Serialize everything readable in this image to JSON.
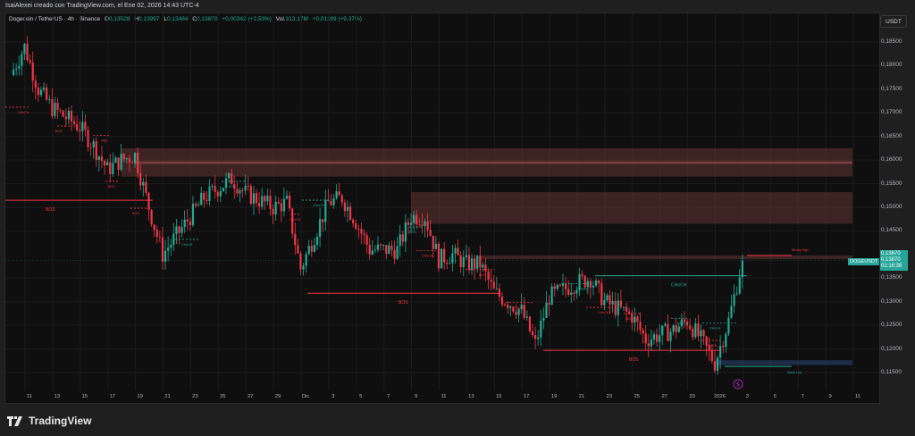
{
  "header": {
    "author_line": "IsaiAlexei creado con TradingView.com, el Ene 02, 2026 14:43 UTC-4"
  },
  "legend": {
    "symbol": "Dogecoin / TetherUS · 4h · Binance",
    "open_label": "O",
    "open": "0,13528",
    "high_label": "H",
    "high": "0,13997",
    "low_label": "L",
    "low": "0,13484",
    "close_label": "C",
    "close": "0,13870",
    "change": "+0,00342 (+2,53%)",
    "vol_label": "Vol.",
    "vol": "313,17M",
    "vol_change": "+0,01189 (+9,37%)"
  },
  "axis": {
    "currency_button": "USDT",
    "price_ticks": [
      "0,18500",
      "0,18000",
      "0,17500",
      "0,17000",
      "0,16500",
      "0,16000",
      "0,15500",
      "0,15000",
      "0,14500",
      "0,13500",
      "0,13000",
      "0,12500",
      "0,12000",
      "0,11500"
    ],
    "time_ticks": [
      "11",
      "13",
      "15",
      "17",
      "19",
      "21",
      "23",
      "25",
      "27",
      "29",
      "Dic",
      "3",
      "5",
      "7",
      "9",
      "11",
      "13",
      "15",
      "17",
      "19",
      "21",
      "23",
      "25",
      "27",
      "29",
      "2026",
      "3",
      "5",
      "7",
      "9",
      "11"
    ]
  },
  "price_label": {
    "symbol": "DOGEUSDT",
    "last": "0,13870",
    "close": "0,13870",
    "countdown": "01:16:38"
  },
  "annotations": {
    "choch": "CHoCH",
    "bos": "BOS",
    "high": "High",
    "strong_high": "Strong High",
    "weak_low": "Weak Low"
  },
  "brand": {
    "name": "TradingView"
  },
  "colors": {
    "up": "#22ab94",
    "down": "#f23645",
    "zone_supply": "#5c2f2f",
    "zone_demand": "#1c2b45",
    "background": "#0f0f0f"
  },
  "chart_data": {
    "type": "candlestick",
    "title": "Dogecoin / TetherUS · 4h · Binance",
    "xlabel": "",
    "ylabel": "USDT",
    "ylim": [
      0.1135,
      0.1875
    ],
    "grid": true,
    "x_ticks": [
      "11",
      "13",
      "15",
      "17",
      "19",
      "21",
      "23",
      "25",
      "27",
      "29",
      "Dic",
      "3",
      "5",
      "7",
      "9",
      "11",
      "13",
      "15",
      "17",
      "19",
      "21",
      "23",
      "25",
      "27",
      "29",
      "2026",
      "3",
      "5",
      "7",
      "9",
      "11"
    ],
    "approx_close_path": [
      {
        "date": "Nov 10",
        "price": 0.178
      },
      {
        "date": "Nov 11",
        "price": 0.184
      },
      {
        "date": "Nov 12",
        "price": 0.175
      },
      {
        "date": "Nov 13",
        "price": 0.171
      },
      {
        "date": "Nov 15",
        "price": 0.167
      },
      {
        "date": "Nov 16",
        "price": 0.163
      },
      {
        "date": "Nov 17",
        "price": 0.158
      },
      {
        "date": "Nov 18",
        "price": 0.16
      },
      {
        "date": "Nov 19",
        "price": 0.161
      },
      {
        "date": "Nov 20",
        "price": 0.15
      },
      {
        "date": "Nov 21",
        "price": 0.14
      },
      {
        "date": "Nov 22",
        "price": 0.144
      },
      {
        "date": "Nov 24",
        "price": 0.152
      },
      {
        "date": "Nov 26",
        "price": 0.156
      },
      {
        "date": "Nov 27",
        "price": 0.153
      },
      {
        "date": "Nov 29",
        "price": 0.15
      },
      {
        "date": "Nov 30",
        "price": 0.151
      },
      {
        "date": "Dic 1",
        "price": 0.137
      },
      {
        "date": "Dic 2",
        "price": 0.144
      },
      {
        "date": "Dic 3",
        "price": 0.151
      },
      {
        "date": "Dic 4",
        "price": 0.152
      },
      {
        "date": "Dic 5",
        "price": 0.147
      },
      {
        "date": "Dic 6",
        "price": 0.141
      },
      {
        "date": "Dic 8",
        "price": 0.141
      },
      {
        "date": "Dic 9",
        "price": 0.148
      },
      {
        "date": "Dic 10",
        "price": 0.148
      },
      {
        "date": "Dic 11",
        "price": 0.139
      },
      {
        "date": "Dic 12",
        "price": 0.14
      },
      {
        "date": "Dic 13",
        "price": 0.138
      },
      {
        "date": "Dic 14",
        "price": 0.138
      },
      {
        "date": "Dic 15",
        "price": 0.132
      },
      {
        "date": "Dic 17",
        "price": 0.128
      },
      {
        "date": "Dic 18",
        "price": 0.121
      },
      {
        "date": "Dic 19",
        "price": 0.131
      },
      {
        "date": "Dic 21",
        "price": 0.134
      },
      {
        "date": "Dic 22",
        "price": 0.135
      },
      {
        "date": "Dic 23",
        "price": 0.13
      },
      {
        "date": "Dic 25",
        "price": 0.127
      },
      {
        "date": "Dic 26",
        "price": 0.122
      },
      {
        "date": "Dic 28",
        "price": 0.124
      },
      {
        "date": "Dic 29",
        "price": 0.126
      },
      {
        "date": "Dic 30",
        "price": 0.122
      },
      {
        "date": "Dic 31",
        "price": 0.117
      },
      {
        "date": "Ene 1",
        "price": 0.126
      },
      {
        "date": "Ene 2",
        "price": 0.1387
      }
    ],
    "zones": [
      {
        "type": "supply",
        "from": "Nov 18",
        "top": 0.1625,
        "bottom": 0.1565
      },
      {
        "type": "supply_inner",
        "from": "Nov 19",
        "top": 0.1597,
        "bottom": 0.1592
      },
      {
        "type": "supply",
        "from": "Dic 9",
        "top": 0.1532,
        "bottom": 0.1465
      },
      {
        "type": "supply",
        "from": "Dic 14",
        "top": 0.1398,
        "bottom": 0.139
      },
      {
        "type": "demand",
        "from": "Dic 31",
        "top": 0.1176,
        "bottom": 0.1166
      }
    ],
    "levels": [
      {
        "label": "BOS",
        "price": 0.1515,
        "color": "down"
      },
      {
        "label": "BOS",
        "price": 0.1318,
        "color": "down"
      },
      {
        "label": "BOS",
        "price": 0.1197,
        "color": "down"
      },
      {
        "label": "CHoCH",
        "price": 0.1355,
        "color": "up"
      },
      {
        "label": "Strong High",
        "price": 0.1398,
        "color": "down"
      },
      {
        "label": "Weak Low",
        "price": 0.1163,
        "color": "up"
      }
    ],
    "last_price": 0.1387
  }
}
